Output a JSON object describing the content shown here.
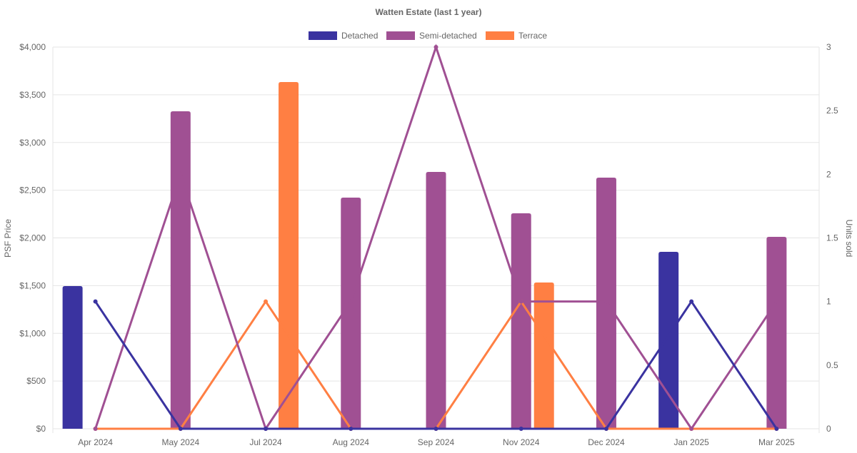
{
  "chart_data": {
    "type": "bar",
    "title": "Watten Estate (last 1 year)",
    "categories": [
      "Apr 2024",
      "May 2024",
      "Jul 2024",
      "Aug 2024",
      "Sep 2024",
      "Nov 2024",
      "Dec 2024",
      "Jan 2025",
      "Mar 2025"
    ],
    "ylabel": "PSF Price",
    "y2label": "Units sold",
    "ylim": [
      0,
      4000
    ],
    "y2lim": [
      0,
      3
    ],
    "yticks": [
      "$0",
      "$500",
      "$1,000",
      "$1,500",
      "$2,000",
      "$2,500",
      "$3,000",
      "$3,500",
      "$4,000"
    ],
    "y2ticks": [
      "0",
      "0.5",
      "1",
      "1.5",
      "2",
      "2.5",
      "3"
    ],
    "legend_position": "top",
    "grid": true,
    "series": [
      {
        "name": "Detached",
        "color": "#3a33a0",
        "psf": [
          1495,
          null,
          null,
          null,
          null,
          null,
          null,
          1854,
          null
        ],
        "units": [
          1,
          0,
          0,
          0,
          0,
          0,
          0,
          1,
          0
        ]
      },
      {
        "name": "Semi-detached",
        "color": "#a05093",
        "psf": [
          null,
          3327,
          null,
          2422,
          2692,
          2258,
          2632,
          null,
          2011
        ],
        "units": [
          0,
          2,
          0,
          1,
          3,
          1,
          1,
          0,
          1
        ]
      },
      {
        "name": "Terrace",
        "color": "#ff7f43",
        "psf": [
          null,
          null,
          3634,
          null,
          null,
          1533,
          null,
          null,
          null
        ],
        "units": [
          0,
          0,
          1,
          0,
          0,
          1,
          0,
          0,
          0
        ]
      }
    ]
  }
}
